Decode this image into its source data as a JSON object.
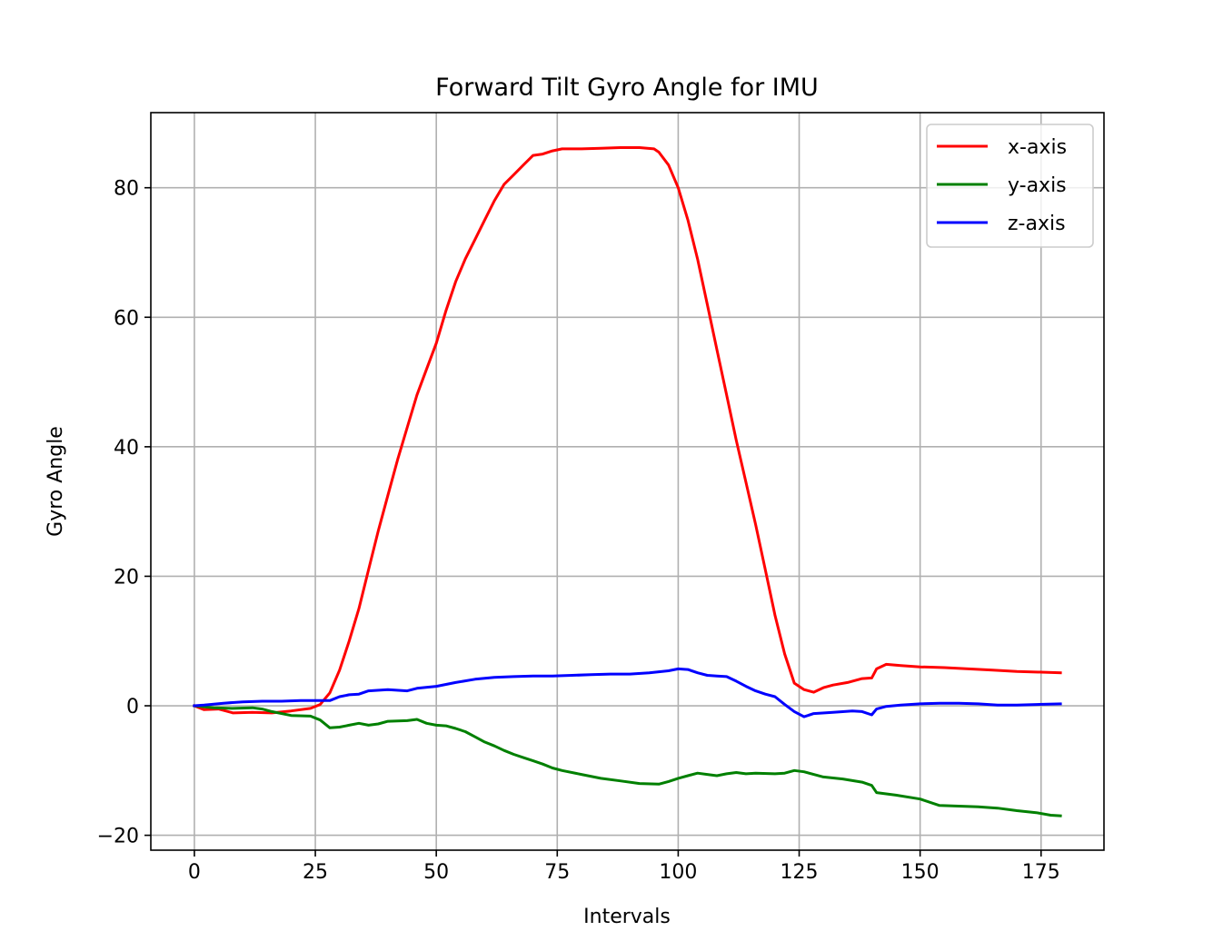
{
  "chart_data": {
    "type": "line",
    "title": "Forward Tilt Gyro Angle for IMU",
    "xlabel": "Intervals",
    "ylabel": "Gyro Angle",
    "xlim": [
      -9,
      188
    ],
    "ylim": [
      -22.3,
      91.6
    ],
    "xticks": [
      0,
      25,
      50,
      75,
      100,
      125,
      150,
      175
    ],
    "yticks": [
      -20,
      0,
      20,
      40,
      60,
      80
    ],
    "grid": true,
    "legend_position": "top-right",
    "series": [
      {
        "name": "x-axis",
        "color": "#ff0000",
        "points": [
          [
            0,
            0
          ],
          [
            2,
            -0.6
          ],
          [
            5,
            -0.5
          ],
          [
            8,
            -1.1
          ],
          [
            12,
            -1.0
          ],
          [
            16,
            -1.1
          ],
          [
            20,
            -0.8
          ],
          [
            24,
            -0.4
          ],
          [
            26,
            0.2
          ],
          [
            28,
            2.0
          ],
          [
            30,
            5.5
          ],
          [
            32,
            10
          ],
          [
            34,
            15
          ],
          [
            36,
            21
          ],
          [
            38,
            27
          ],
          [
            40,
            32.5
          ],
          [
            42,
            38
          ],
          [
            44,
            43
          ],
          [
            46,
            48
          ],
          [
            48,
            52
          ],
          [
            50,
            56
          ],
          [
            52,
            61
          ],
          [
            54,
            65.5
          ],
          [
            56,
            69
          ],
          [
            58,
            72
          ],
          [
            60,
            75
          ],
          [
            62,
            78
          ],
          [
            64,
            80.5
          ],
          [
            66,
            82
          ],
          [
            68,
            83.5
          ],
          [
            70,
            85
          ],
          [
            72,
            85.2
          ],
          [
            74,
            85.7
          ],
          [
            76,
            86.0
          ],
          [
            80,
            86.0
          ],
          [
            84,
            86.1
          ],
          [
            88,
            86.2
          ],
          [
            92,
            86.2
          ],
          [
            95,
            86.0
          ],
          [
            96,
            85.5
          ],
          [
            98,
            83.5
          ],
          [
            100,
            80
          ],
          [
            102,
            75
          ],
          [
            104,
            69
          ],
          [
            106,
            62
          ],
          [
            108,
            55
          ],
          [
            110,
            48
          ],
          [
            112,
            41
          ],
          [
            114,
            34.5
          ],
          [
            116,
            28
          ],
          [
            118,
            21
          ],
          [
            120,
            14
          ],
          [
            122,
            8
          ],
          [
            124,
            3.5
          ],
          [
            126,
            2.5
          ],
          [
            128,
            2.1
          ],
          [
            130,
            2.8
          ],
          [
            132,
            3.2
          ],
          [
            135,
            3.6
          ],
          [
            138,
            4.2
          ],
          [
            140,
            4.3
          ],
          [
            141,
            5.7
          ],
          [
            143,
            6.4
          ],
          [
            146,
            6.2
          ],
          [
            150,
            6.0
          ],
          [
            155,
            5.9
          ],
          [
            160,
            5.7
          ],
          [
            165,
            5.5
          ],
          [
            170,
            5.3
          ],
          [
            175,
            5.2
          ],
          [
            179,
            5.1
          ]
        ]
      },
      {
        "name": "y-axis",
        "color": "#008000",
        "points": [
          [
            0,
            0
          ],
          [
            4,
            -0.3
          ],
          [
            8,
            -0.4
          ],
          [
            12,
            -0.3
          ],
          [
            14,
            -0.5
          ],
          [
            16,
            -0.9
          ],
          [
            20,
            -1.5
          ],
          [
            24,
            -1.6
          ],
          [
            26,
            -2.2
          ],
          [
            28,
            -3.4
          ],
          [
            30,
            -3.3
          ],
          [
            32,
            -3.0
          ],
          [
            34,
            -2.7
          ],
          [
            36,
            -3.0
          ],
          [
            38,
            -2.8
          ],
          [
            40,
            -2.4
          ],
          [
            44,
            -2.3
          ],
          [
            46,
            -2.1
          ],
          [
            48,
            -2.7
          ],
          [
            50,
            -3.0
          ],
          [
            52,
            -3.1
          ],
          [
            54,
            -3.5
          ],
          [
            56,
            -4.0
          ],
          [
            58,
            -4.8
          ],
          [
            60,
            -5.6
          ],
          [
            62,
            -6.2
          ],
          [
            64,
            -6.9
          ],
          [
            66,
            -7.5
          ],
          [
            68,
            -8.0
          ],
          [
            70,
            -8.5
          ],
          [
            72,
            -9.0
          ],
          [
            74,
            -9.6
          ],
          [
            76,
            -10.0
          ],
          [
            80,
            -10.6
          ],
          [
            84,
            -11.2
          ],
          [
            88,
            -11.6
          ],
          [
            92,
            -12.0
          ],
          [
            96,
            -12.1
          ],
          [
            98,
            -11.7
          ],
          [
            100,
            -11.2
          ],
          [
            102,
            -10.8
          ],
          [
            104,
            -10.4
          ],
          [
            106,
            -10.6
          ],
          [
            108,
            -10.8
          ],
          [
            110,
            -10.5
          ],
          [
            112,
            -10.3
          ],
          [
            114,
            -10.5
          ],
          [
            116,
            -10.4
          ],
          [
            120,
            -10.5
          ],
          [
            122,
            -10.4
          ],
          [
            124,
            -10.0
          ],
          [
            126,
            -10.2
          ],
          [
            128,
            -10.6
          ],
          [
            130,
            -11.0
          ],
          [
            134,
            -11.3
          ],
          [
            138,
            -11.8
          ],
          [
            140,
            -12.3
          ],
          [
            141,
            -13.4
          ],
          [
            145,
            -13.8
          ],
          [
            150,
            -14.4
          ],
          [
            154,
            -15.4
          ],
          [
            158,
            -15.5
          ],
          [
            162,
            -15.6
          ],
          [
            166,
            -15.8
          ],
          [
            170,
            -16.2
          ],
          [
            174,
            -16.5
          ],
          [
            177,
            -16.9
          ],
          [
            179,
            -17.0
          ]
        ]
      },
      {
        "name": "z-axis",
        "color": "#0000ff",
        "points": [
          [
            0,
            0
          ],
          [
            2,
            0.1
          ],
          [
            6,
            0.4
          ],
          [
            10,
            0.6
          ],
          [
            14,
            0.7
          ],
          [
            18,
            0.7
          ],
          [
            22,
            0.8
          ],
          [
            26,
            0.8
          ],
          [
            28,
            0.8
          ],
          [
            30,
            1.4
          ],
          [
            32,
            1.7
          ],
          [
            34,
            1.8
          ],
          [
            36,
            2.3
          ],
          [
            40,
            2.5
          ],
          [
            44,
            2.3
          ],
          [
            46,
            2.7
          ],
          [
            50,
            3.0
          ],
          [
            54,
            3.6
          ],
          [
            58,
            4.1
          ],
          [
            62,
            4.4
          ],
          [
            66,
            4.5
          ],
          [
            70,
            4.6
          ],
          [
            74,
            4.6
          ],
          [
            78,
            4.7
          ],
          [
            82,
            4.8
          ],
          [
            86,
            4.9
          ],
          [
            90,
            4.9
          ],
          [
            94,
            5.1
          ],
          [
            98,
            5.4
          ],
          [
            100,
            5.7
          ],
          [
            102,
            5.6
          ],
          [
            104,
            5.1
          ],
          [
            106,
            4.7
          ],
          [
            108,
            4.6
          ],
          [
            110,
            4.5
          ],
          [
            112,
            3.8
          ],
          [
            114,
            3.0
          ],
          [
            116,
            2.3
          ],
          [
            118,
            1.8
          ],
          [
            120,
            1.4
          ],
          [
            122,
            0.2
          ],
          [
            124,
            -0.9
          ],
          [
            126,
            -1.7
          ],
          [
            128,
            -1.2
          ],
          [
            132,
            -1.0
          ],
          [
            136,
            -0.8
          ],
          [
            138,
            -0.9
          ],
          [
            140,
            -1.4
          ],
          [
            141,
            -0.5
          ],
          [
            143,
            -0.1
          ],
          [
            146,
            0.1
          ],
          [
            150,
            0.3
          ],
          [
            154,
            0.4
          ],
          [
            158,
            0.4
          ],
          [
            162,
            0.3
          ],
          [
            166,
            0.1
          ],
          [
            170,
            0.1
          ],
          [
            174,
            0.2
          ],
          [
            179,
            0.3
          ]
        ]
      }
    ]
  }
}
